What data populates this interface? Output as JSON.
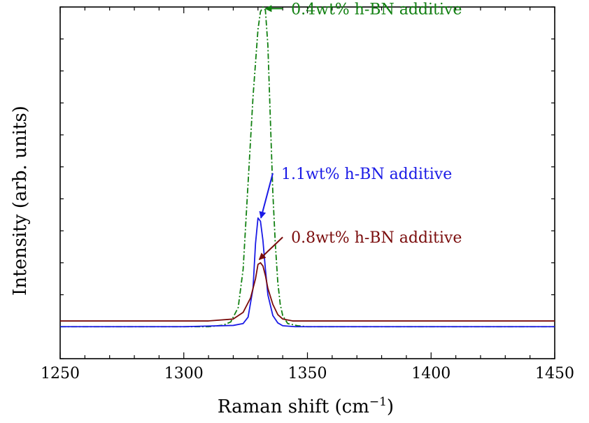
{
  "chart_data": {
    "type": "line",
    "title": "",
    "xlabel": "Raman shift (cm",
    "xlabel_sup": "−1",
    "xlabel_close": ")",
    "ylabel": "Intensity (arb. units)",
    "xlim": [
      1250,
      1450
    ],
    "ylim": [
      -0.1,
      1.0
    ],
    "x_major_ticks": [
      1250,
      1300,
      1350,
      1400,
      1450
    ],
    "x_tick_labels": [
      "1250",
      "1300",
      "1350",
      "1400",
      "1450"
    ],
    "x_minor_step": 10,
    "y_minor_step": 0.1,
    "grid": false,
    "series": [
      {
        "key": "s04",
        "color": "#118011",
        "dash": "8,3,2,3",
        "points": [
          [
            1250,
            0
          ],
          [
            1310,
            0
          ],
          [
            1316,
            0.005
          ],
          [
            1319,
            0.015
          ],
          [
            1322,
            0.06
          ],
          [
            1324,
            0.18
          ],
          [
            1326,
            0.45
          ],
          [
            1328,
            0.72
          ],
          [
            1330,
            0.93
          ],
          [
            1331,
            0.985
          ],
          [
            1332,
            1.0
          ],
          [
            1333,
            0.99
          ],
          [
            1334,
            0.88
          ],
          [
            1335,
            0.65
          ],
          [
            1336,
            0.42
          ],
          [
            1337,
            0.26
          ],
          [
            1338,
            0.14
          ],
          [
            1339,
            0.07
          ],
          [
            1340,
            0.035
          ],
          [
            1342,
            0.01
          ],
          [
            1346,
            0.003
          ],
          [
            1350,
            0
          ],
          [
            1450,
            0
          ]
        ]
      },
      {
        "key": "s11",
        "color": "#1a1ae6",
        "dash": "",
        "points": [
          [
            1250,
            0
          ],
          [
            1300,
            0
          ],
          [
            1320,
            0.004
          ],
          [
            1324,
            0.01
          ],
          [
            1326,
            0.03
          ],
          [
            1328,
            0.12
          ],
          [
            1329,
            0.26
          ],
          [
            1330,
            0.34
          ],
          [
            1331,
            0.33
          ],
          [
            1332,
            0.27
          ],
          [
            1333,
            0.18
          ],
          [
            1334,
            0.1
          ],
          [
            1336,
            0.035
          ],
          [
            1338,
            0.012
          ],
          [
            1340,
            0.003
          ],
          [
            1345,
            0
          ],
          [
            1450,
            0
          ]
        ]
      },
      {
        "key": "s08",
        "color": "#7a0c0c",
        "dash": "",
        "points": [
          [
            1250,
            0.018
          ],
          [
            1310,
            0.018
          ],
          [
            1320,
            0.024
          ],
          [
            1324,
            0.045
          ],
          [
            1327,
            0.09
          ],
          [
            1329,
            0.15
          ],
          [
            1330,
            0.195
          ],
          [
            1331,
            0.2
          ],
          [
            1332,
            0.19
          ],
          [
            1333,
            0.16
          ],
          [
            1334,
            0.12
          ],
          [
            1336,
            0.07
          ],
          [
            1338,
            0.038
          ],
          [
            1340,
            0.024
          ],
          [
            1344,
            0.018
          ],
          [
            1450,
            0.018
          ]
        ]
      }
    ],
    "annotations": [
      {
        "key": "a04",
        "text": "0.4wt% h-BN additive",
        "color": "#118011",
        "xy": [
          1333,
          0.995
        ],
        "xytext": [
          1340,
          0.995
        ],
        "align": "left"
      },
      {
        "key": "a11",
        "text": "1.1wt% h-BN additive",
        "color": "#1a1ae6",
        "xy": [
          1331.2,
          0.34
        ],
        "xytext": [
          1336,
          0.48
        ],
        "align": "left"
      },
      {
        "key": "a08",
        "text": "0.8wt% h-BN additive",
        "color": "#7a0c0c",
        "xy": [
          1330.5,
          0.21
        ],
        "xytext": [
          1340,
          0.28
        ],
        "align": "left"
      }
    ]
  }
}
